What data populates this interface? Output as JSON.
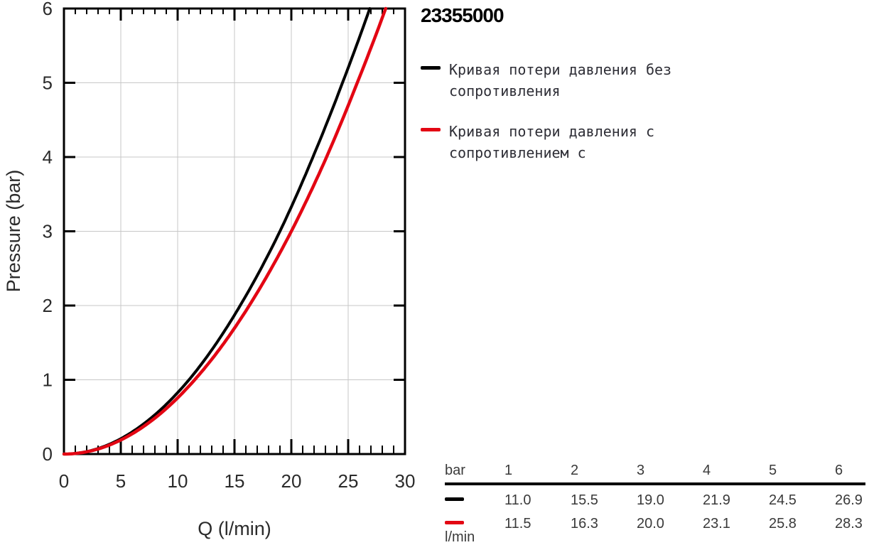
{
  "title": "23355000",
  "colors": {
    "series_black": "#000000",
    "series_red": "#e30613",
    "grid": "#c7c7c7",
    "axis": "#000000",
    "text": "#2b2b2b"
  },
  "legend": [
    {
      "color": "#000000",
      "line1": "Кривая потери давления без",
      "line2": "сопротивления"
    },
    {
      "color": "#e30613",
      "line1": "Кривая потери давления с",
      "line2": "сопротивлением с"
    }
  ],
  "chart_data": {
    "type": "line",
    "title": "23355000",
    "xlabel": "Q (l/min)",
    "ylabel": "Pressure (bar)",
    "xlim": [
      0,
      30
    ],
    "ylim": [
      0,
      6
    ],
    "x_major_ticks": [
      0,
      5,
      10,
      15,
      20,
      25,
      30
    ],
    "x_minor_step": 1,
    "y_major_ticks": [
      0,
      1,
      2,
      3,
      4,
      5,
      6
    ],
    "grid": true,
    "legend_position": "right",
    "series": [
      {
        "name": "Кривая потери давления без сопротивления",
        "color": "#000000",
        "points_p_bar": [
          0,
          1,
          2,
          3,
          4,
          5,
          6
        ],
        "points_q_lmin": [
          0,
          11.0,
          15.5,
          19.0,
          21.9,
          24.5,
          26.9
        ]
      },
      {
        "name": "Кривая потери давления с сопротивлением с",
        "color": "#e30613",
        "points_p_bar": [
          0,
          1,
          2,
          3,
          4,
          5,
          6
        ],
        "points_q_lmin": [
          0,
          11.5,
          16.3,
          20.0,
          23.1,
          25.8,
          28.3
        ]
      }
    ]
  },
  "table": {
    "header_label": "bar",
    "pressures": [
      "1",
      "2",
      "3",
      "4",
      "5",
      "6"
    ],
    "rows": [
      {
        "swatch": "#000000",
        "values": [
          "11.0",
          "15.5",
          "19.0",
          "21.9",
          "24.5",
          "26.9"
        ]
      },
      {
        "swatch": "#e30613",
        "values": [
          "11.5",
          "16.3",
          "20.0",
          "23.1",
          "25.8",
          "28.3"
        ]
      }
    ],
    "unit_label": "l/min"
  }
}
